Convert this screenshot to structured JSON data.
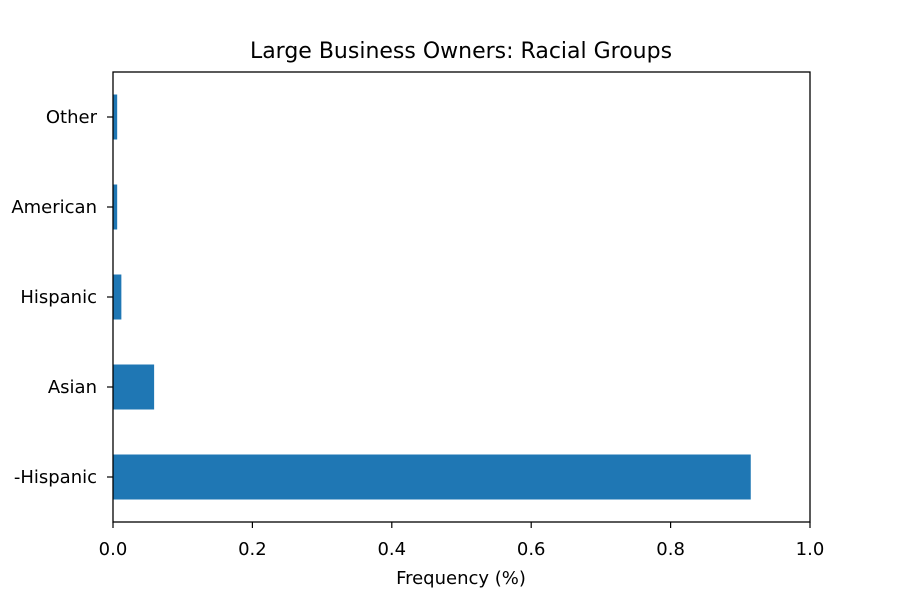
{
  "chart_data": {
    "type": "bar",
    "orientation": "horizontal",
    "title": "Large Business Owners: Racial Groups",
    "xlabel": "Frequency (%)",
    "ylabel": "",
    "categories": [
      "-Hispanic",
      "Asian",
      "Hispanic",
      "American",
      "Other"
    ],
    "values": [
      0.915,
      0.059,
      0.012,
      0.006,
      0.006
    ],
    "xlim": [
      0,
      1.0
    ],
    "x_ticks": [
      "0.0",
      "0.2",
      "0.4",
      "0.6",
      "0.8",
      "1.0"
    ],
    "grid": false,
    "legend": "none",
    "bar_color": "#1f77b4"
  }
}
